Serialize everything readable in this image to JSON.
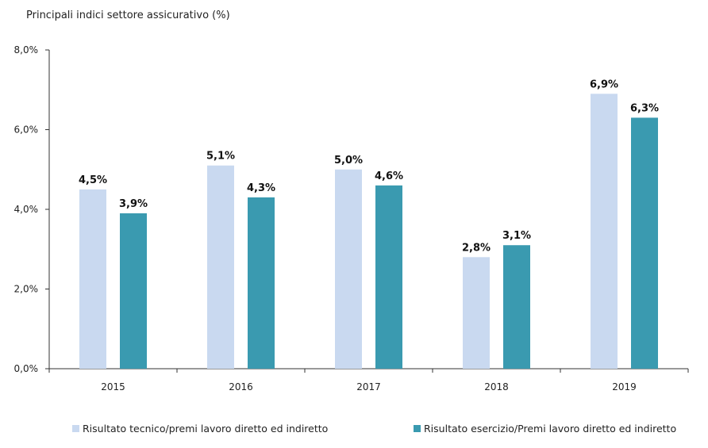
{
  "chart_data": {
    "type": "bar",
    "title": "Principali indici settore assicurativo (%)",
    "categories": [
      "2015",
      "2016",
      "2017",
      "2018",
      "2019"
    ],
    "series": [
      {
        "name": "Risultato tecnico/premi lavoro diretto ed indiretto",
        "values": [
          4.5,
          5.1,
          5.0,
          2.8,
          6.9
        ],
        "labels": [
          "4,5%",
          "5,1%",
          "5,0%",
          "2,8%",
          "6,9%"
        ],
        "color": "#c9d9f0"
      },
      {
        "name": "Risultato esercizio/Premi lavoro diretto ed indiretto",
        "values": [
          3.9,
          4.3,
          4.6,
          3.1,
          6.3
        ],
        "labels": [
          "3,9%",
          "4,3%",
          "4,6%",
          "3,1%",
          "6,3%"
        ],
        "color": "#3a9ab0"
      }
    ],
    "ylim": [
      0,
      8
    ],
    "yticks": [
      0,
      2,
      4,
      6,
      8
    ],
    "ytick_labels": [
      "0,0%",
      "2,0%",
      "4,0%",
      "6,0%",
      "8,0%"
    ],
    "grid": false,
    "legend_position": "bottom"
  }
}
